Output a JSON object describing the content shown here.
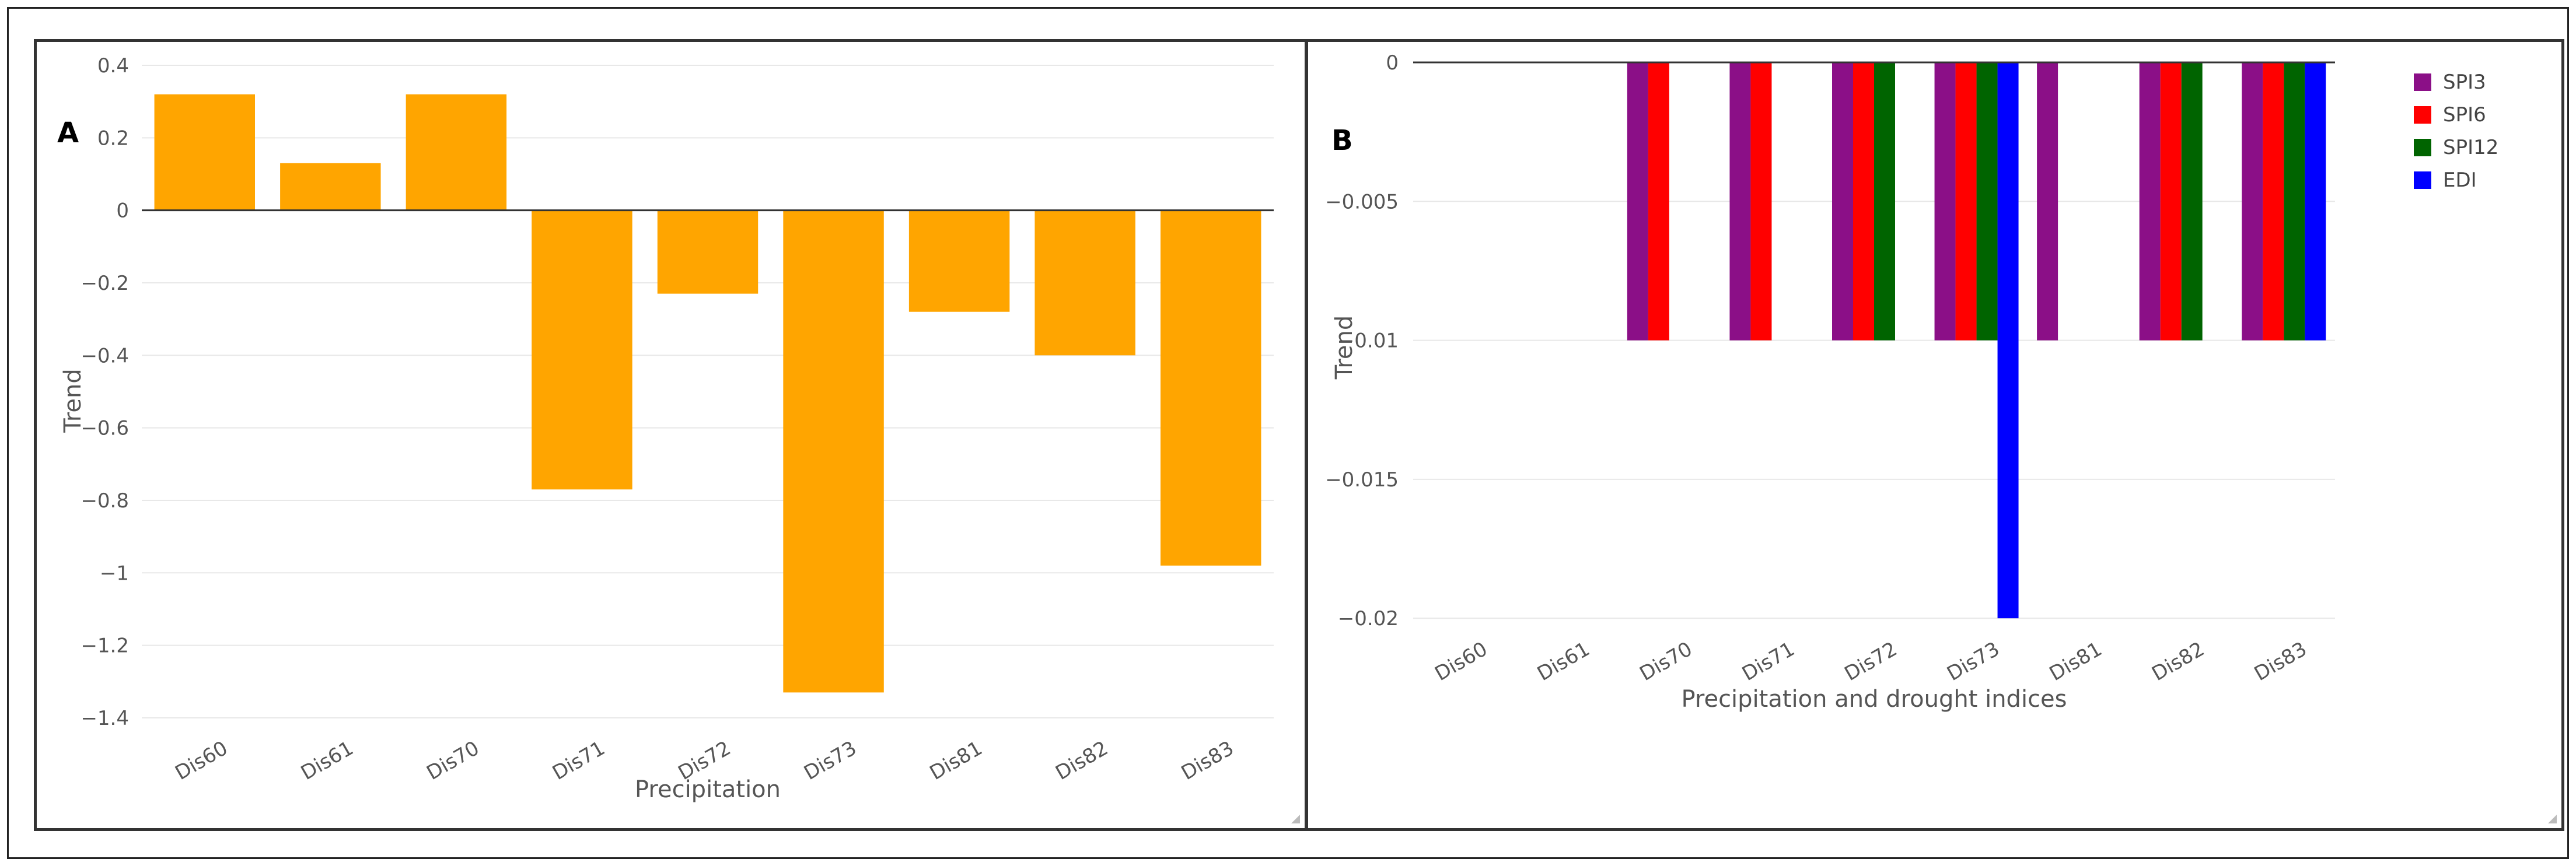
{
  "chart_data": [
    {
      "panel": "A",
      "type": "bar",
      "categories": [
        "Dis60",
        "Dis61",
        "Dis70",
        "Dis71",
        "Dis72",
        "Dis73",
        "Dis81",
        "Dis82",
        "Dis83"
      ],
      "values": [
        0.32,
        0.13,
        0.32,
        -0.77,
        -0.23,
        -1.33,
        -0.28,
        -0.4,
        -0.98
      ],
      "color": "#ffa500",
      "xlabel": "Precipitation",
      "ylabel": "Trend",
      "ylim": [
        -1.45,
        0.4
      ],
      "yticks": [
        0.4,
        0.2,
        0,
        -0.2,
        -0.4,
        -0.6,
        -0.8,
        -1,
        -1.2,
        -1.4
      ],
      "ytick_labels": [
        "0.4",
        "0.2",
        "0",
        "−0.2",
        "−0.4",
        "−0.6",
        "−0.8",
        "−1",
        "−1.2",
        "−1.4"
      ]
    },
    {
      "panel": "B",
      "type": "bar",
      "categories": [
        "Dis60",
        "Dis61",
        "Dis70",
        "Dis71",
        "Dis72",
        "Dis73",
        "Dis81",
        "Dis82",
        "Dis83"
      ],
      "series": [
        {
          "name": "SPI3",
          "color": "#8b0f87",
          "values": [
            null,
            null,
            -0.01,
            -0.01,
            -0.01,
            -0.01,
            -0.01,
            -0.01,
            -0.01
          ]
        },
        {
          "name": "SPI6",
          "color": "#ff0000",
          "values": [
            null,
            null,
            -0.01,
            -0.01,
            -0.01,
            -0.01,
            null,
            -0.01,
            -0.01
          ]
        },
        {
          "name": "SPI12",
          "color": "#006400",
          "values": [
            null,
            null,
            null,
            null,
            -0.01,
            -0.01,
            null,
            -0.01,
            -0.01
          ]
        },
        {
          "name": "EDI",
          "color": "#0000ff",
          "values": [
            null,
            null,
            null,
            null,
            null,
            -0.02,
            null,
            null,
            -0.01
          ]
        }
      ],
      "xlabel": "Precipitation and drought indices",
      "ylabel": "Trend",
      "ylim": [
        -0.0205,
        0
      ],
      "yticks": [
        0,
        -0.005,
        -0.01,
        -0.015,
        -0.02
      ],
      "ytick_labels": [
        "0",
        "−0.005",
        "−0.01",
        "−0.015",
        "−0.02"
      ],
      "legend_position": "top-right"
    }
  ]
}
